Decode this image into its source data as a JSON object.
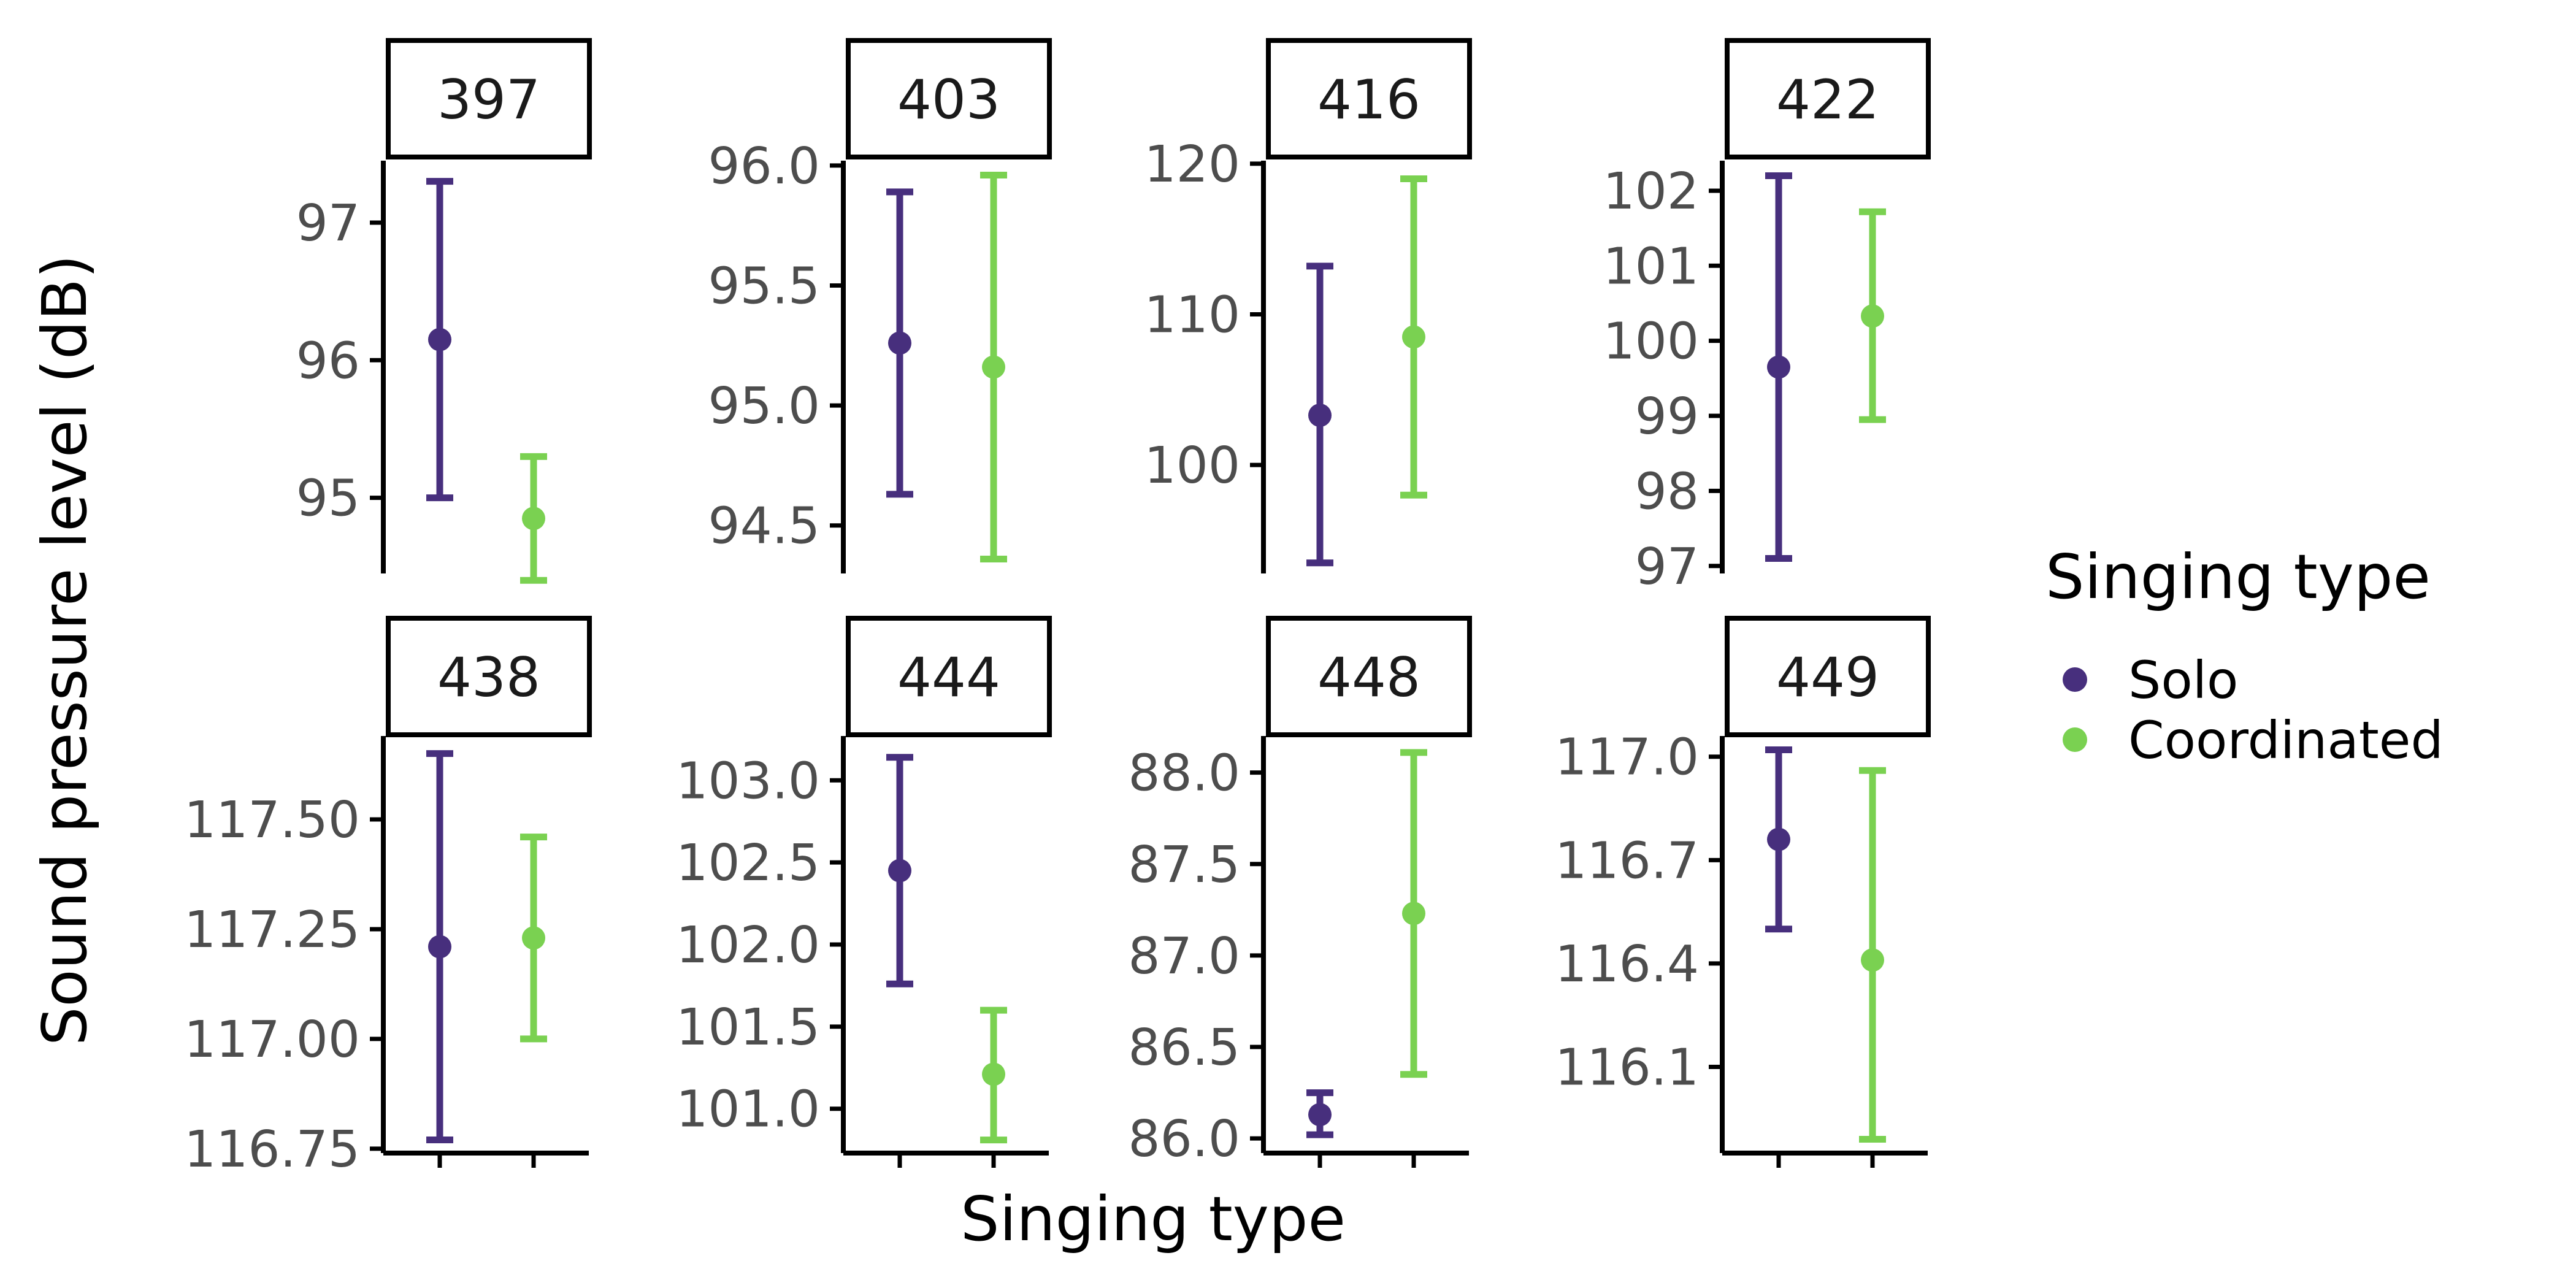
{
  "chart_data": {
    "type": "errorbar",
    "ylabel": "Sound pressure level (dB)",
    "xlabel": "Singing type",
    "legend": {
      "title": "Singing type",
      "placement": "right",
      "entries": [
        "Solo",
        "Coordinated"
      ]
    },
    "series_colors": {
      "Solo": "#472f7d",
      "Coordinated": "#7ad151"
    },
    "categories": [
      "Solo",
      "Coordinated"
    ],
    "axis_line_color": "#000000",
    "tick_label_color": "#4d4d4d",
    "panels": [
      {
        "id": "397",
        "ylim": [
          94.45,
          97.45
        ],
        "yticks": [
          95,
          96,
          97
        ],
        "tick_labels": [
          "95",
          "96",
          "97"
        ],
        "points": [
          {
            "series": "Solo",
            "y": 96.15,
            "ymin": 95.0,
            "ymax": 97.3
          },
          {
            "series": "Coordinated",
            "y": 94.85,
            "ymin": 94.4,
            "ymax": 95.3
          }
        ]
      },
      {
        "id": "403",
        "ylim": [
          94.3,
          96.02
        ],
        "yticks": [
          94.5,
          95.0,
          95.5,
          96.0
        ],
        "tick_labels": [
          "94.5",
          "95.0",
          "95.5",
          "96.0"
        ],
        "points": [
          {
            "series": "Solo",
            "y": 95.26,
            "ymin": 94.63,
            "ymax": 95.89
          },
          {
            "series": "Coordinated",
            "y": 95.16,
            "ymin": 94.36,
            "ymax": 95.96
          }
        ]
      },
      {
        "id": "416",
        "ylim": [
          92.8,
          120.2
        ],
        "yticks": [
          100,
          110,
          120
        ],
        "tick_labels": [
          "100",
          "110",
          "120"
        ],
        "points": [
          {
            "series": "Solo",
            "y": 103.3,
            "ymin": 93.5,
            "ymax": 113.2
          },
          {
            "series": "Coordinated",
            "y": 108.5,
            "ymin": 98.0,
            "ymax": 119.0
          }
        ]
      },
      {
        "id": "422",
        "ylim": [
          96.9,
          102.4
        ],
        "yticks": [
          97,
          98,
          99,
          100,
          101,
          102
        ],
        "tick_labels": [
          "97",
          "98",
          "99",
          "100",
          "101",
          "102"
        ],
        "points": [
          {
            "series": "Solo",
            "y": 99.65,
            "ymin": 97.1,
            "ymax": 102.2
          },
          {
            "series": "Coordinated",
            "y": 100.33,
            "ymin": 98.95,
            "ymax": 101.72
          }
        ]
      },
      {
        "id": "438",
        "ylim": [
          116.74,
          117.69
        ],
        "yticks": [
          116.75,
          117.0,
          117.25,
          117.5
        ],
        "tick_labels": [
          "116.75",
          "117.00",
          "117.25",
          "117.50"
        ],
        "points": [
          {
            "series": "Solo",
            "y": 117.21,
            "ymin": 116.77,
            "ymax": 117.65
          },
          {
            "series": "Coordinated",
            "y": 117.23,
            "ymin": 117.0,
            "ymax": 117.46
          }
        ]
      },
      {
        "id": "444",
        "ylim": [
          100.73,
          103.27
        ],
        "yticks": [
          101.0,
          101.5,
          102.0,
          102.5,
          103.0
        ],
        "tick_labels": [
          "101.0",
          "101.5",
          "102.0",
          "102.5",
          "103.0"
        ],
        "points": [
          {
            "series": "Solo",
            "y": 102.45,
            "ymin": 101.76,
            "ymax": 103.14
          },
          {
            "series": "Coordinated",
            "y": 101.21,
            "ymin": 100.81,
            "ymax": 101.6
          }
        ]
      },
      {
        "id": "448",
        "ylim": [
          85.92,
          88.2
        ],
        "yticks": [
          86.0,
          86.5,
          87.0,
          87.5,
          88.0
        ],
        "tick_labels": [
          "86.0",
          "86.5",
          "87.0",
          "87.5",
          "88.0"
        ],
        "points": [
          {
            "series": "Solo",
            "y": 86.13,
            "ymin": 86.02,
            "ymax": 86.25
          },
          {
            "series": "Coordinated",
            "y": 87.23,
            "ymin": 86.35,
            "ymax": 88.11
          }
        ]
      },
      {
        "id": "449",
        "ylim": [
          115.85,
          117.06
        ],
        "yticks": [
          116.1,
          116.4,
          116.7,
          117.0
        ],
        "tick_labels": [
          "116.1",
          "116.4",
          "116.7",
          "117.0"
        ],
        "points": [
          {
            "series": "Solo",
            "y": 116.76,
            "ymin": 116.5,
            "ymax": 117.02
          },
          {
            "series": "Coordinated",
            "y": 116.41,
            "ymin": 115.89,
            "ymax": 116.96
          }
        ]
      }
    ]
  }
}
